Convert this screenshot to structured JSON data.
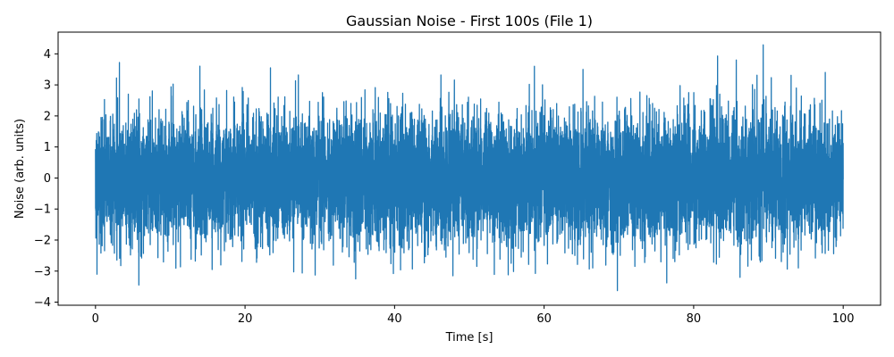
{
  "chart_data": {
    "type": "line",
    "title": "Gaussian Noise - First 100s (File 1)",
    "xlabel": "Time [s]",
    "ylabel": "Noise (arb. units)",
    "xlim": [
      -5,
      105
    ],
    "ylim": [
      -4.1,
      4.7
    ],
    "xticks": [
      0,
      20,
      40,
      60,
      80,
      100
    ],
    "yticks": [
      -4,
      -3,
      -2,
      -1,
      0,
      1,
      2,
      3,
      4
    ],
    "grid": false,
    "legend": "none",
    "series": [
      {
        "color": "#1f77b4",
        "distribution": "gaussian",
        "mean": 0,
        "std": 1,
        "x_range": [
          0,
          100
        ],
        "x_step": 0.01,
        "approx_min": -3.63,
        "approx_max": 4.29,
        "notable_peaks": [
          {
            "x": 3.2,
            "y": 3.72
          },
          {
            "x": 23.4,
            "y": 3.55
          },
          {
            "x": 46.2,
            "y": 3.32
          },
          {
            "x": 58.7,
            "y": 3.6
          },
          {
            "x": 65.2,
            "y": 3.5
          },
          {
            "x": 83.2,
            "y": 3.93
          },
          {
            "x": 85.7,
            "y": 3.8
          },
          {
            "x": 89.3,
            "y": 4.29
          },
          {
            "x": 97.6,
            "y": 3.4
          }
        ],
        "notable_troughs": [
          {
            "x": 0.2,
            "y": -3.1
          },
          {
            "x": 5.8,
            "y": -3.45
          },
          {
            "x": 15.6,
            "y": -2.95
          },
          {
            "x": 34.8,
            "y": -3.25
          },
          {
            "x": 47.8,
            "y": -3.15
          },
          {
            "x": 55.2,
            "y": -3.12
          },
          {
            "x": 66.5,
            "y": -2.9
          },
          {
            "x": 69.8,
            "y": -3.63
          },
          {
            "x": 76.4,
            "y": -3.38
          },
          {
            "x": 86.2,
            "y": -3.2
          },
          {
            "x": 94.0,
            "y": -2.9
          }
        ]
      }
    ]
  }
}
